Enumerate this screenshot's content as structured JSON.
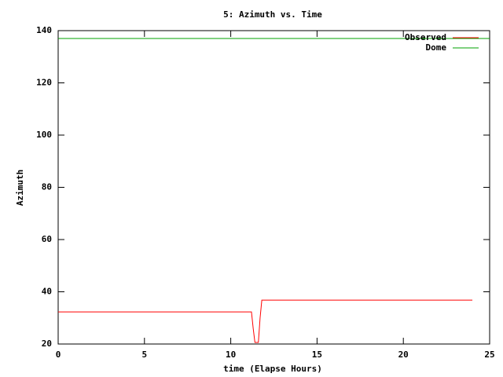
{
  "chart_data": {
    "type": "line",
    "title": "5: Azimuth vs. Time",
    "xlabel": "time (Elapse Hours)",
    "ylabel": "Azimuth",
    "xlim": [
      0,
      25
    ],
    "xticks": [
      0,
      5,
      10,
      15,
      20,
      25
    ],
    "ylim": [
      20,
      140
    ],
    "yticks": [
      20,
      40,
      60,
      80,
      100,
      120,
      140
    ],
    "grid": false,
    "legend": "top-right",
    "series": [
      {
        "name": "Observed",
        "color": "#ff0000",
        "x": [
          0,
          11.2,
          11.3,
          11.4,
          11.6,
          11.7,
          11.8,
          24
        ],
        "values": [
          32.3,
          32.3,
          26,
          20.6,
          20.6,
          30,
          36.8,
          36.8
        ]
      },
      {
        "name": "Dome",
        "color": "#00a000",
        "x": [
          0,
          25
        ],
        "values": [
          137,
          137
        ]
      }
    ]
  }
}
